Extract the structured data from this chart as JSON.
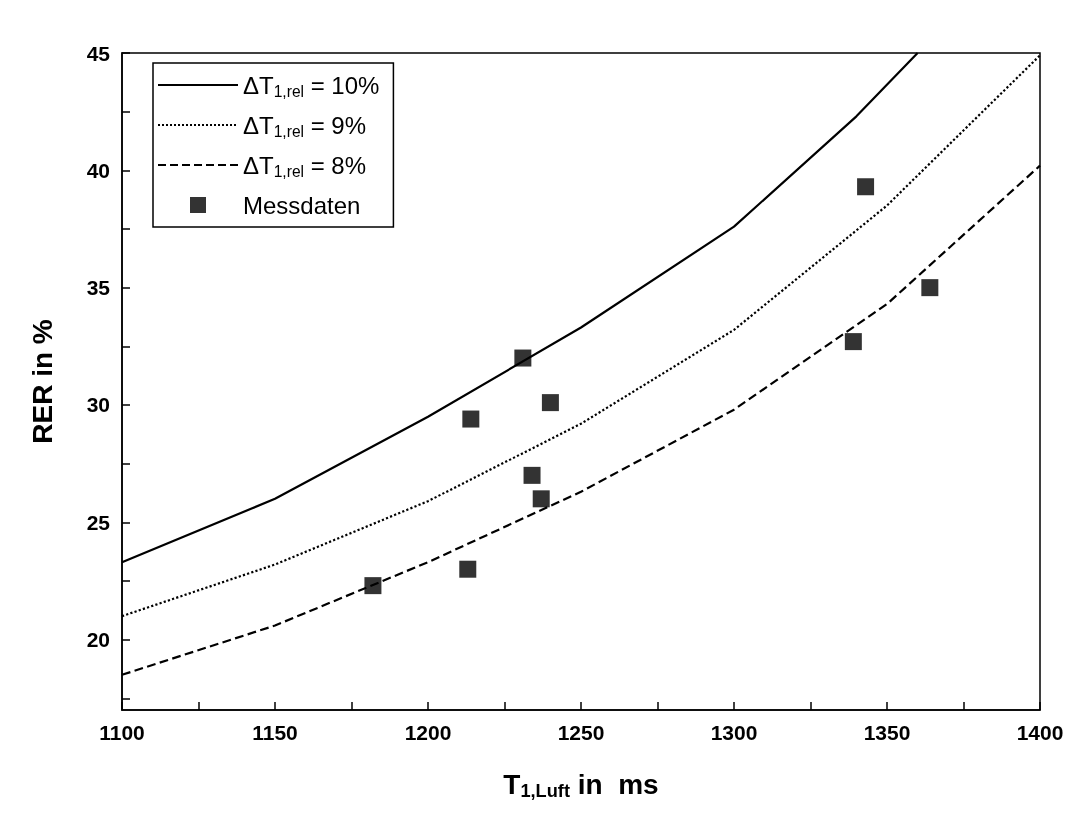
{
  "chart_data": {
    "type": "line",
    "xlabel": "T$_{1,Luft}$ in  ms",
    "ylabel": "RER in %",
    "xlim": [
      1100,
      1400
    ],
    "ylim": [
      17,
      45
    ],
    "xticks": [
      1100,
      {
        "value": 1125,
        "label": null
      },
      1150,
      {
        "value": 1175,
        "label": null
      },
      1200,
      {
        "value": 1225,
        "label": null
      },
      1250,
      {
        "value": 1275,
        "label": null
      },
      1300,
      {
        "value": 1325,
        "label": null
      },
      1350,
      {
        "value": 1375,
        "label": null
      },
      1400
    ],
    "yticks": [
      {
        "value": 17.5,
        "label": null
      },
      20,
      {
        "value": 22.5,
        "label": null
      },
      25,
      {
        "value": 27.5,
        "label": null
      },
      30,
      {
        "value": 32.5,
        "label": null
      },
      35,
      {
        "value": 37.5,
        "label": null
      },
      40,
      {
        "value": 42.5,
        "label": null
      },
      45
    ],
    "grid": false,
    "legend": "top left",
    "marker": "none",
    "series": [
      {
        "name": "ΔT$_{1,rel}$ = 10%",
        "color": "#000000",
        "line_style": "solid",
        "x": [
          1100,
          1150,
          1200,
          1250,
          1300,
          1340,
          1360
        ],
        "values": [
          23.3,
          26.0,
          29.5,
          33.3,
          37.6,
          42.3,
          45.0
        ]
      },
      {
        "name": "ΔT$_{1,rel}$ = 9%",
        "color": "#000000",
        "line_style": "dotted",
        "x": [
          1100,
          1150,
          1200,
          1250,
          1300,
          1350,
          1400
        ],
        "values": [
          21.0,
          23.2,
          25.9,
          29.2,
          33.2,
          38.5,
          44.9
        ]
      },
      {
        "name": "ΔT$_{1,rel}$ = 8%",
        "color": "#000000",
        "line_style": "dashed",
        "x": [
          1100,
          1150,
          1200,
          1250,
          1300,
          1350,
          1400
        ],
        "values": [
          18.5,
          20.6,
          23.3,
          26.3,
          29.8,
          34.3,
          40.2
        ]
      },
      {
        "name": "Messdaten",
        "type": "scatter",
        "marker": "square",
        "color": "#000000",
        "x": [
          1182,
          1213,
          1214,
          1231,
          1234,
          1237,
          1240,
          1339,
          1343,
          1364
        ],
        "values": [
          22.3,
          23.0,
          29.4,
          32.0,
          27.0,
          26.0,
          30.1,
          32.7,
          39.3,
          35.0
        ]
      }
    ]
  }
}
